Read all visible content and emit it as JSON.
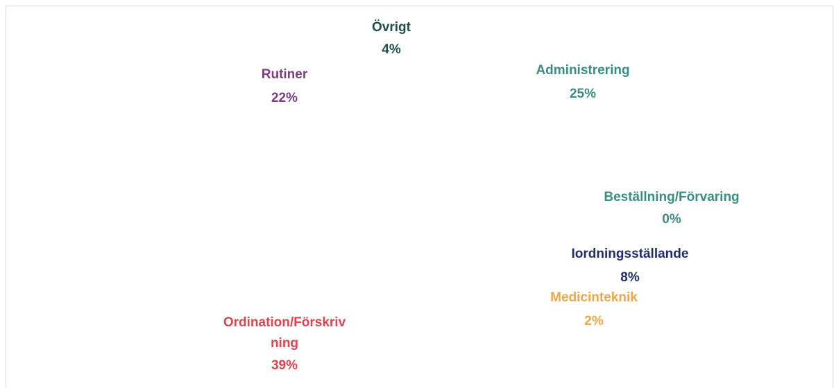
{
  "chart_data": {
    "type": "pie",
    "categories": [
      "Administrering",
      "Beställning/Förvaring",
      "Iordningsställande",
      "Medicinteknik",
      "Ordination/Förskrivning",
      "Rutiner",
      "Övrigt"
    ],
    "values": [
      25,
      0,
      8,
      2,
      39,
      22,
      4
    ],
    "value_labels": [
      "25%",
      "0%",
      "8%",
      "2%",
      "39%",
      "22%",
      "4%"
    ],
    "colors": [
      "#3b8c82",
      "#3b8c82",
      "#1f2d6b",
      "#eaa94b",
      "#d9464f",
      "#7a3f7e",
      "#1f4e4a"
    ]
  }
}
